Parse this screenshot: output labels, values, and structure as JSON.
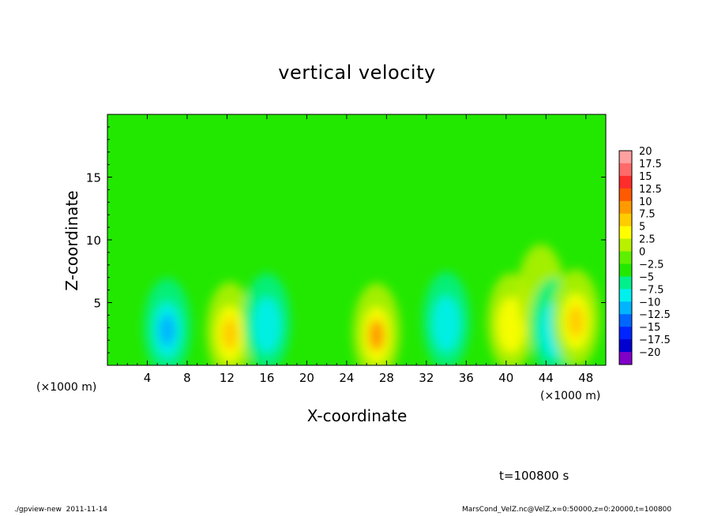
{
  "chart_data": {
    "type": "heatmap",
    "title": "vertical velocity",
    "xlabel": "X-coordinate",
    "ylabel": "Z-coordinate",
    "x_unit_label": "(×1000 m)",
    "xlim": [
      0,
      50
    ],
    "ylim": [
      0,
      20
    ],
    "x_ticks": [
      "4",
      "8",
      "12",
      "16",
      "20",
      "24",
      "28",
      "32",
      "36",
      "40",
      "44",
      "48"
    ],
    "x_tick_values": [
      4,
      8,
      12,
      16,
      20,
      24,
      28,
      32,
      36,
      40,
      44,
      48
    ],
    "y_ticks": [
      "5",
      "10",
      "15"
    ],
    "y_tick_values": [
      5,
      10,
      15
    ],
    "colorbar": {
      "labels": [
        "20",
        "17.5",
        "15",
        "12.5",
        "10",
        "7.5",
        "5",
        "2.5",
        "0",
        "−2.5",
        "−5",
        "−7.5",
        "−10",
        "−12.5",
        "−15",
        "−17.5",
        "−20"
      ],
      "levels": [
        20,
        17.5,
        15,
        12.5,
        10,
        7.5,
        5,
        2.5,
        0,
        -2.5,
        -5,
        -7.5,
        -10,
        -12.5,
        -15,
        -17.5,
        -20
      ],
      "colors": [
        "#ffa0a0",
        "#ff6a6a",
        "#ff2c2c",
        "#ff5a00",
        "#ff9a00",
        "#ffcc00",
        "#ffff00",
        "#b8f000",
        "#5ef000",
        "#22e800",
        "#00f08c",
        "#00f0ee",
        "#00b4ff",
        "#0066ff",
        "#0024ff",
        "#0000d0",
        "#8000c8"
      ]
    },
    "features": [
      {
        "x": 6.0,
        "z": 2.8,
        "value": -10
      },
      {
        "x": 12.3,
        "z": 2.5,
        "value": 7.5
      },
      {
        "x": 16.0,
        "z": 3.2,
        "value": -5
      },
      {
        "x": 27.0,
        "z": 2.4,
        "value": 10
      },
      {
        "x": 34.0,
        "z": 3.3,
        "value": -5
      },
      {
        "x": 40.5,
        "z": 3.2,
        "value": 5
      },
      {
        "x": 43.5,
        "z": 5.5,
        "value": 2.5
      },
      {
        "x": 44.8,
        "z": 2.8,
        "value": -5
      },
      {
        "x": 47.0,
        "z": 3.5,
        "value": 7.5
      }
    ]
  },
  "annotations": {
    "time": "t=100800 s",
    "footer_left": "./gpview-new  2011-11-14",
    "footer_right": "MarsCond_VelZ.nc@VelZ,x=0:50000,z=0:20000,t=100800"
  }
}
